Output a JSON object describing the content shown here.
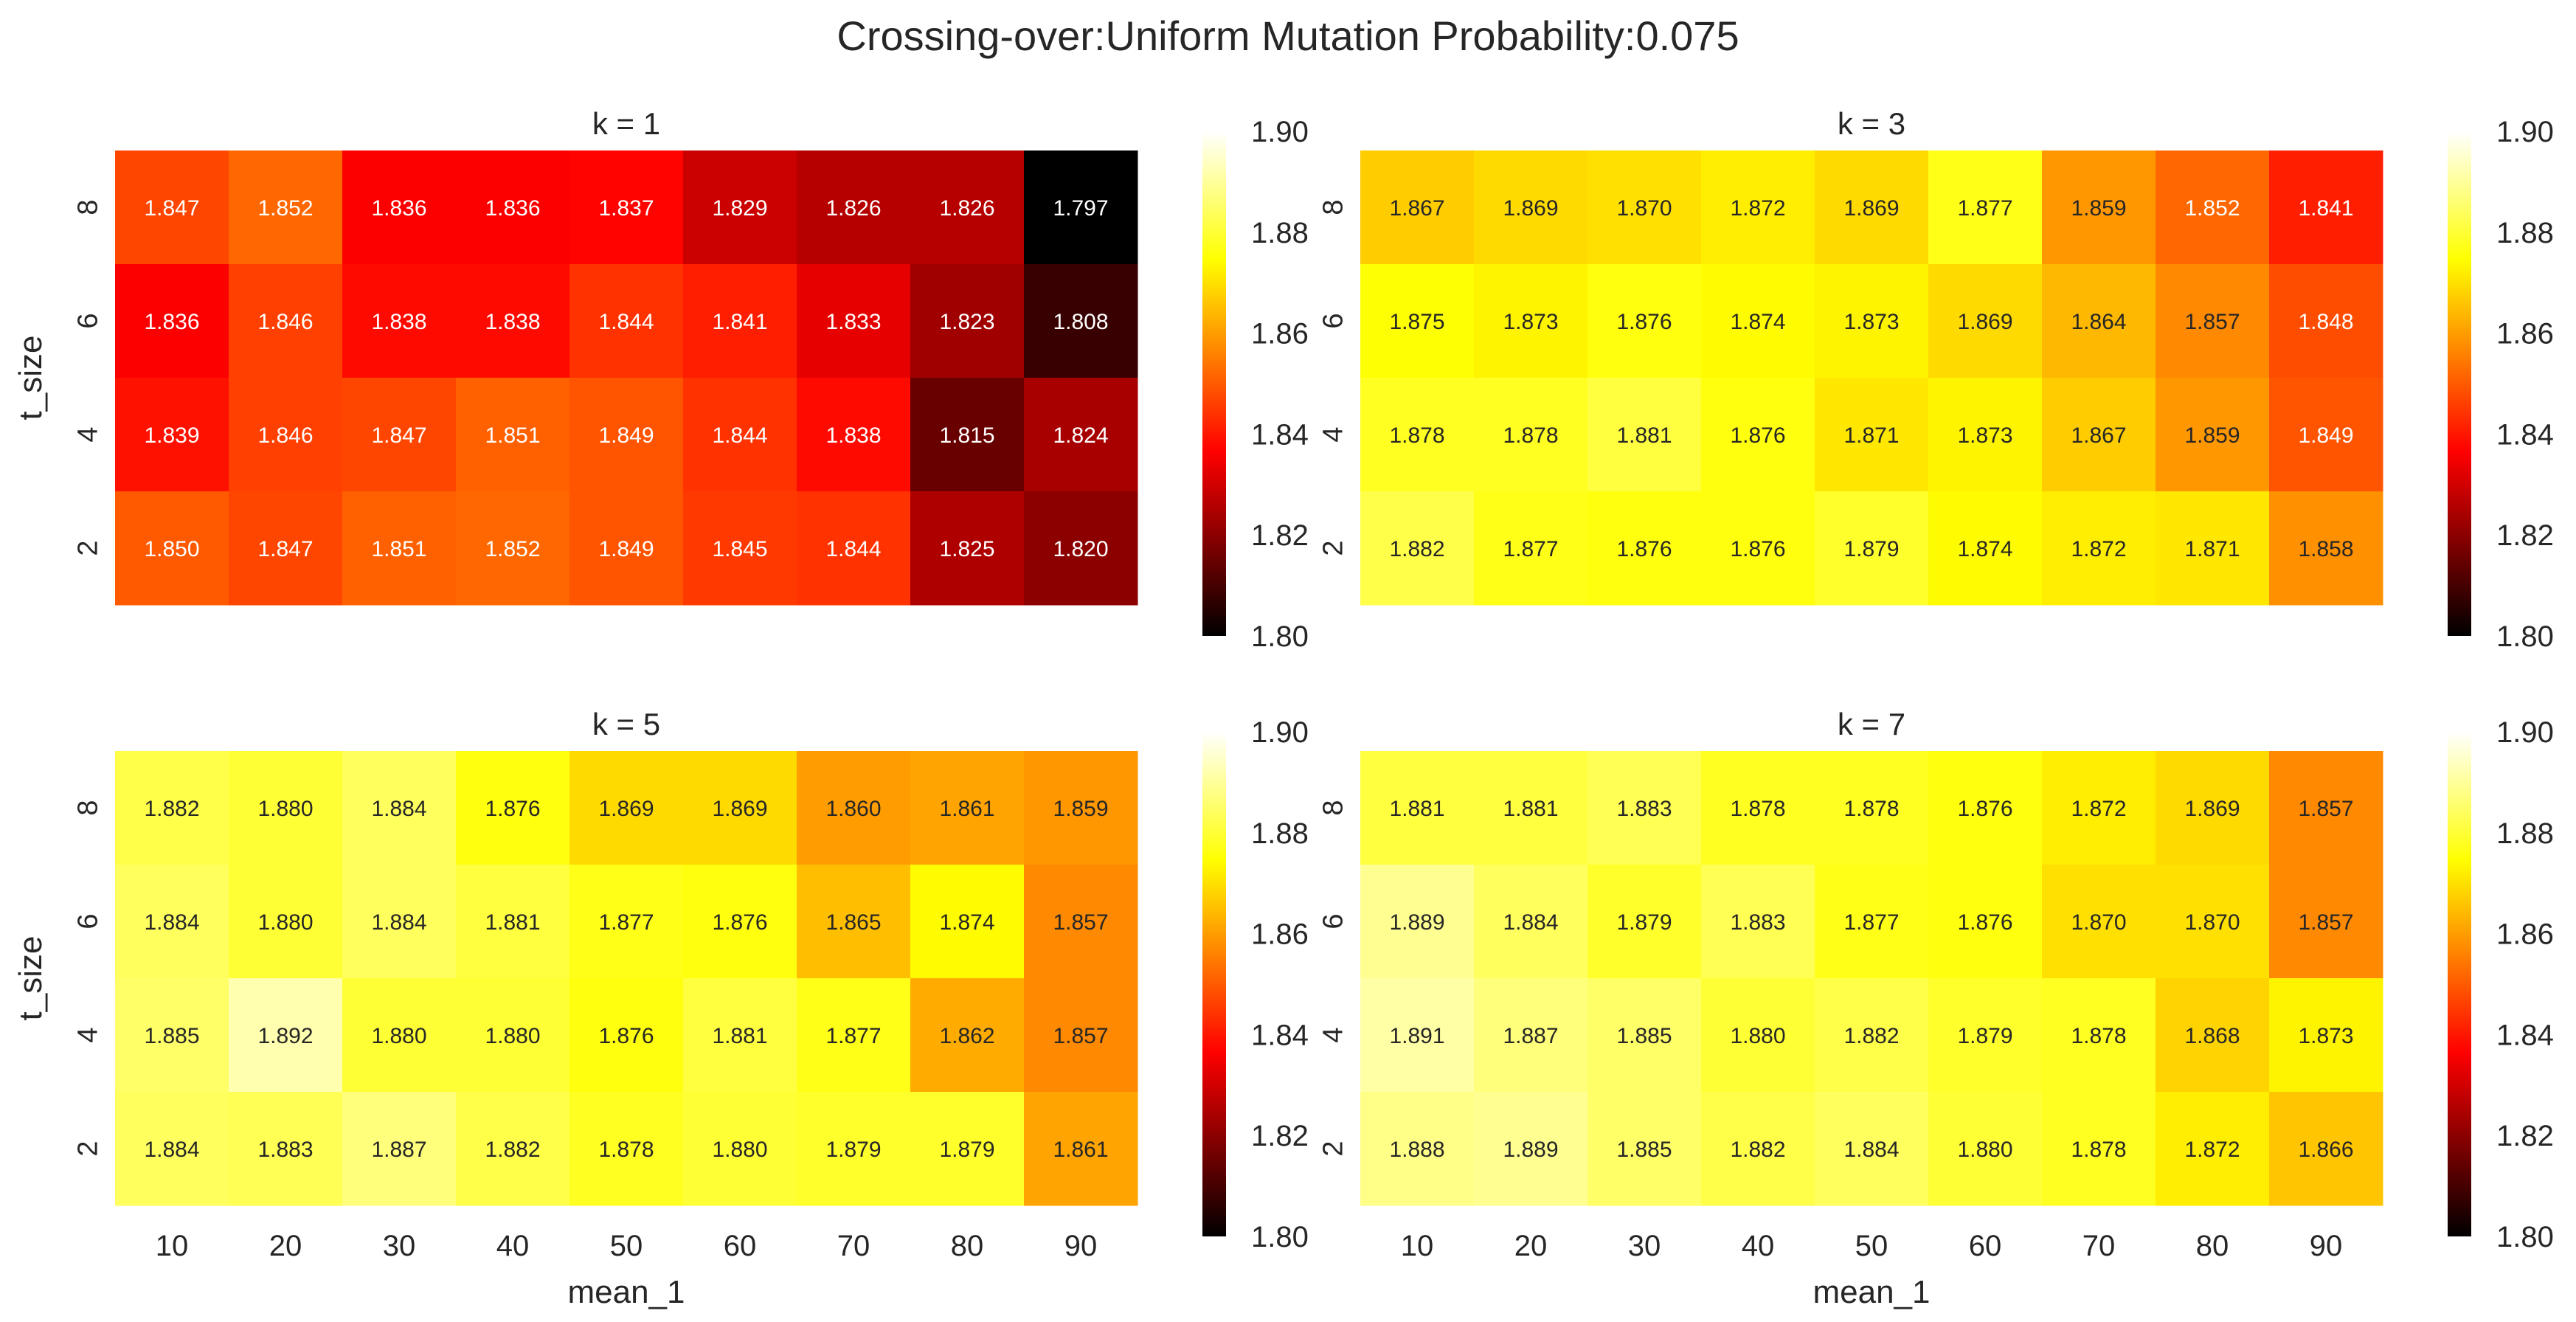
{
  "suptitle": "Crossing-over:Uniform Mutation Probability:0.075",
  "chart_data": [
    {
      "type": "heatmap",
      "title": "k = 1",
      "xlabel": "",
      "ylabel": "t_size",
      "x": [
        "10",
        "20",
        "30",
        "40",
        "50",
        "60",
        "70",
        "80",
        "90"
      ],
      "y": [
        "8",
        "6",
        "4",
        "2"
      ],
      "values": [
        [
          1.847,
          1.852,
          1.836,
          1.836,
          1.837,
          1.829,
          1.826,
          1.826,
          1.797
        ],
        [
          1.836,
          1.846,
          1.838,
          1.838,
          1.844,
          1.841,
          1.833,
          1.823,
          1.808
        ],
        [
          1.839,
          1.846,
          1.847,
          1.851,
          1.849,
          1.844,
          1.838,
          1.815,
          1.824
        ],
        [
          1.85,
          1.847,
          1.851,
          1.852,
          1.849,
          1.845,
          1.844,
          1.825,
          1.82
        ]
      ],
      "colormap": "hot",
      "vmin": 1.8,
      "vmax": 1.9,
      "colorbar_ticks": [
        "1.80",
        "1.82",
        "1.84",
        "1.86",
        "1.88",
        "1.90"
      ]
    },
    {
      "type": "heatmap",
      "title": "k = 3",
      "xlabel": "",
      "ylabel": "",
      "x": [
        "10",
        "20",
        "30",
        "40",
        "50",
        "60",
        "70",
        "80",
        "90"
      ],
      "y": [
        "8",
        "6",
        "4",
        "2"
      ],
      "values": [
        [
          1.867,
          1.869,
          1.87,
          1.872,
          1.869,
          1.877,
          1.859,
          1.852,
          1.841
        ],
        [
          1.875,
          1.873,
          1.876,
          1.874,
          1.873,
          1.869,
          1.864,
          1.857,
          1.848
        ],
        [
          1.878,
          1.878,
          1.881,
          1.876,
          1.871,
          1.873,
          1.867,
          1.859,
          1.849
        ],
        [
          1.882,
          1.877,
          1.876,
          1.876,
          1.879,
          1.874,
          1.872,
          1.871,
          1.858
        ]
      ],
      "colormap": "hot",
      "vmin": 1.8,
      "vmax": 1.9,
      "colorbar_ticks": [
        "1.80",
        "1.82",
        "1.84",
        "1.86",
        "1.88",
        "1.90"
      ]
    },
    {
      "type": "heatmap",
      "title": "k = 5",
      "xlabel": "mean_1",
      "ylabel": "t_size",
      "x": [
        "10",
        "20",
        "30",
        "40",
        "50",
        "60",
        "70",
        "80",
        "90"
      ],
      "y": [
        "8",
        "6",
        "4",
        "2"
      ],
      "values": [
        [
          1.882,
          1.88,
          1.884,
          1.876,
          1.869,
          1.869,
          1.86,
          1.861,
          1.859
        ],
        [
          1.884,
          1.88,
          1.884,
          1.881,
          1.877,
          1.876,
          1.865,
          1.874,
          1.857
        ],
        [
          1.885,
          1.892,
          1.88,
          1.88,
          1.876,
          1.881,
          1.877,
          1.862,
          1.857
        ],
        [
          1.884,
          1.883,
          1.887,
          1.882,
          1.878,
          1.88,
          1.879,
          1.879,
          1.861
        ]
      ],
      "colormap": "hot",
      "vmin": 1.8,
      "vmax": 1.9,
      "colorbar_ticks": [
        "1.80",
        "1.82",
        "1.84",
        "1.86",
        "1.88",
        "1.90"
      ]
    },
    {
      "type": "heatmap",
      "title": "k = 7",
      "xlabel": "mean_1",
      "ylabel": "",
      "x": [
        "10",
        "20",
        "30",
        "40",
        "50",
        "60",
        "70",
        "80",
        "90"
      ],
      "y": [
        "8",
        "6",
        "4",
        "2"
      ],
      "values": [
        [
          1.881,
          1.881,
          1.883,
          1.878,
          1.878,
          1.876,
          1.872,
          1.869,
          1.857
        ],
        [
          1.889,
          1.884,
          1.879,
          1.883,
          1.877,
          1.876,
          1.87,
          1.87,
          1.857
        ],
        [
          1.891,
          1.887,
          1.885,
          1.88,
          1.882,
          1.879,
          1.878,
          1.868,
          1.873
        ],
        [
          1.888,
          1.889,
          1.885,
          1.882,
          1.884,
          1.88,
          1.878,
          1.872,
          1.866
        ]
      ],
      "colormap": "hot",
      "vmin": 1.8,
      "vmax": 1.9,
      "colorbar_ticks": [
        "1.80",
        "1.82",
        "1.84",
        "1.86",
        "1.88",
        "1.90"
      ]
    }
  ]
}
